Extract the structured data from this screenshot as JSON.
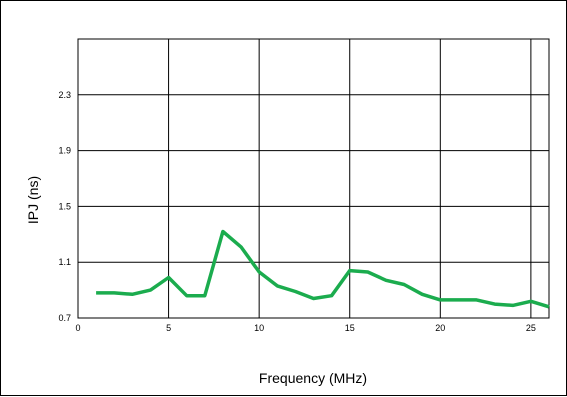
{
  "chart_data": {
    "type": "line",
    "title": "",
    "xlabel": "Frequency (MHz)",
    "ylabel": "IPJ (ns)",
    "xlim": [
      0,
      26
    ],
    "ylim": [
      0.7,
      2.7
    ],
    "x_ticks": [
      0,
      5,
      10,
      15,
      20,
      25
    ],
    "y_ticks": [
      0.7,
      1.1,
      1.5,
      1.9,
      2.3
    ],
    "grid": true,
    "legend": "none",
    "series": [
      {
        "color": "#1bac4e",
        "x": [
          1,
          2,
          3,
          4,
          5,
          6,
          7,
          8,
          9,
          10,
          11,
          12,
          13,
          14,
          15,
          16,
          17,
          18,
          19,
          20,
          21,
          22,
          23,
          24,
          25,
          26
        ],
        "y": [
          0.88,
          0.88,
          0.87,
          0.9,
          0.99,
          0.86,
          0.86,
          1.32,
          1.21,
          1.03,
          0.93,
          0.89,
          0.84,
          0.86,
          1.04,
          1.03,
          0.97,
          0.94,
          0.87,
          0.83,
          0.83,
          0.83,
          0.8,
          0.79,
          0.82,
          0.78
        ]
      }
    ]
  }
}
